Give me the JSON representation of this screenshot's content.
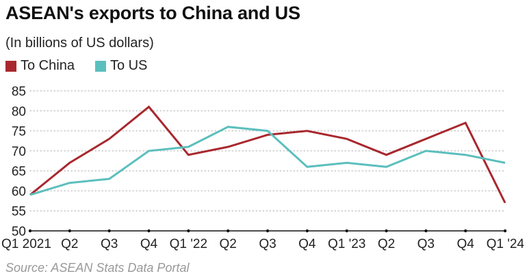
{
  "title": "ASEAN's exports to China and US",
  "subtitle": "(In billions of US dollars)",
  "source": "Source: ASEAN Stats Data Portal",
  "colors": {
    "china": "#a8282e",
    "us": "#5bbfbd"
  },
  "chart_data": {
    "type": "line",
    "categories": [
      "Q1 2021",
      "Q2",
      "Q3",
      "Q4",
      "Q1 '22",
      "Q2",
      "Q3",
      "Q4",
      "Q1 '23",
      "Q2",
      "Q3",
      "Q4",
      "Q1 '24"
    ],
    "series": [
      {
        "name": "To China",
        "color": "#a8282e",
        "values": [
          59,
          67,
          73,
          81,
          69,
          71,
          74,
          75,
          73,
          69,
          73,
          77,
          57
        ]
      },
      {
        "name": "To US",
        "color": "#5bbfbd",
        "values": [
          59,
          62,
          63,
          70,
          71,
          76,
          75,
          66,
          67,
          66,
          70,
          69,
          67
        ]
      }
    ],
    "ylim": [
      50,
      85
    ],
    "yticks": [
      50,
      55,
      60,
      65,
      70,
      75,
      80,
      85
    ],
    "grid": true,
    "legend_position": "top-left"
  }
}
